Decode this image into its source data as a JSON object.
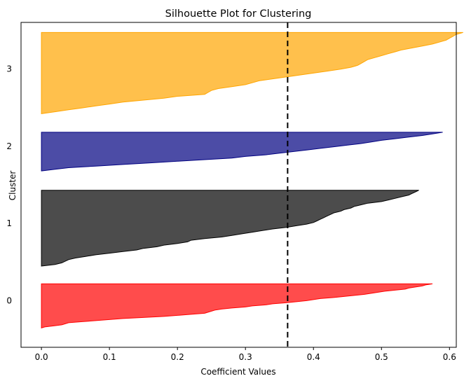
{
  "chart_data": {
    "type": "area",
    "title": "Silhouette Plot for Clustering",
    "xlabel": "Coefficient Values",
    "ylabel": "Cluster",
    "xlim": [
      -0.03,
      0.61
    ],
    "ylim": [
      -0.6,
      3.6
    ],
    "xticks": [
      0.0,
      0.1,
      0.2,
      0.3,
      0.4,
      0.5,
      0.6
    ],
    "xtick_labels": [
      "0.0",
      "0.1",
      "0.2",
      "0.3",
      "0.4",
      "0.5",
      "0.6"
    ],
    "yticks": [
      0,
      1,
      2,
      3
    ],
    "ytick_labels": [
      "0",
      "1",
      "2",
      "3"
    ],
    "grid": false,
    "average_silhouette": 0.362,
    "clusters": [
      {
        "label": "0",
        "color": "#ff0000",
        "band": [
          -0.35,
          0.22
        ],
        "sorted_values": [
          0.0,
          0.005,
          0.018,
          0.03,
          0.035,
          0.04,
          0.06,
          0.08,
          0.1,
          0.12,
          0.15,
          0.18,
          0.2,
          0.22,
          0.24,
          0.245,
          0.25,
          0.255,
          0.265,
          0.28,
          0.3,
          0.31,
          0.33,
          0.34,
          0.36,
          0.375,
          0.39,
          0.4,
          0.41,
          0.43,
          0.445,
          0.46,
          0.475,
          0.485,
          0.495,
          0.505,
          0.52,
          0.535,
          0.54,
          0.55,
          0.56,
          0.565,
          0.575
        ]
      },
      {
        "label": "1",
        "color": "#000000",
        "band": [
          0.45,
          1.43
        ],
        "sorted_values": [
          0.0,
          0.02,
          0.03,
          0.035,
          0.04,
          0.05,
          0.065,
          0.08,
          0.1,
          0.12,
          0.14,
          0.15,
          0.17,
          0.18,
          0.2,
          0.215,
          0.22,
          0.24,
          0.265,
          0.28,
          0.295,
          0.31,
          0.325,
          0.34,
          0.36,
          0.375,
          0.39,
          0.4,
          0.405,
          0.41,
          0.415,
          0.42,
          0.425,
          0.43,
          0.44,
          0.445,
          0.455,
          0.46,
          0.47,
          0.48,
          0.5,
          0.51,
          0.52,
          0.53,
          0.54,
          0.545,
          0.55,
          0.555
        ]
      },
      {
        "label": "2",
        "color": "#000080",
        "band": [
          1.68,
          2.18
        ],
        "sorted_values": [
          0.0,
          0.02,
          0.04,
          0.08,
          0.12,
          0.16,
          0.2,
          0.24,
          0.28,
          0.3,
          0.33,
          0.35,
          0.37,
          0.39,
          0.41,
          0.43,
          0.45,
          0.47,
          0.485,
          0.5,
          0.52,
          0.54,
          0.56,
          0.575,
          0.59
        ]
      },
      {
        "label": "3",
        "color": "#ffa500",
        "band": [
          2.42,
          3.47
        ],
        "sorted_values": [
          0.0,
          0.02,
          0.04,
          0.06,
          0.08,
          0.1,
          0.12,
          0.15,
          0.18,
          0.2,
          0.24,
          0.245,
          0.25,
          0.26,
          0.28,
          0.3,
          0.31,
          0.32,
          0.34,
          0.36,
          0.38,
          0.4,
          0.42,
          0.44,
          0.455,
          0.465,
          0.47,
          0.475,
          0.48,
          0.49,
          0.5,
          0.51,
          0.52,
          0.53,
          0.545,
          0.56,
          0.575,
          0.585,
          0.595,
          0.6,
          0.605,
          0.61,
          0.62
        ]
      }
    ]
  }
}
